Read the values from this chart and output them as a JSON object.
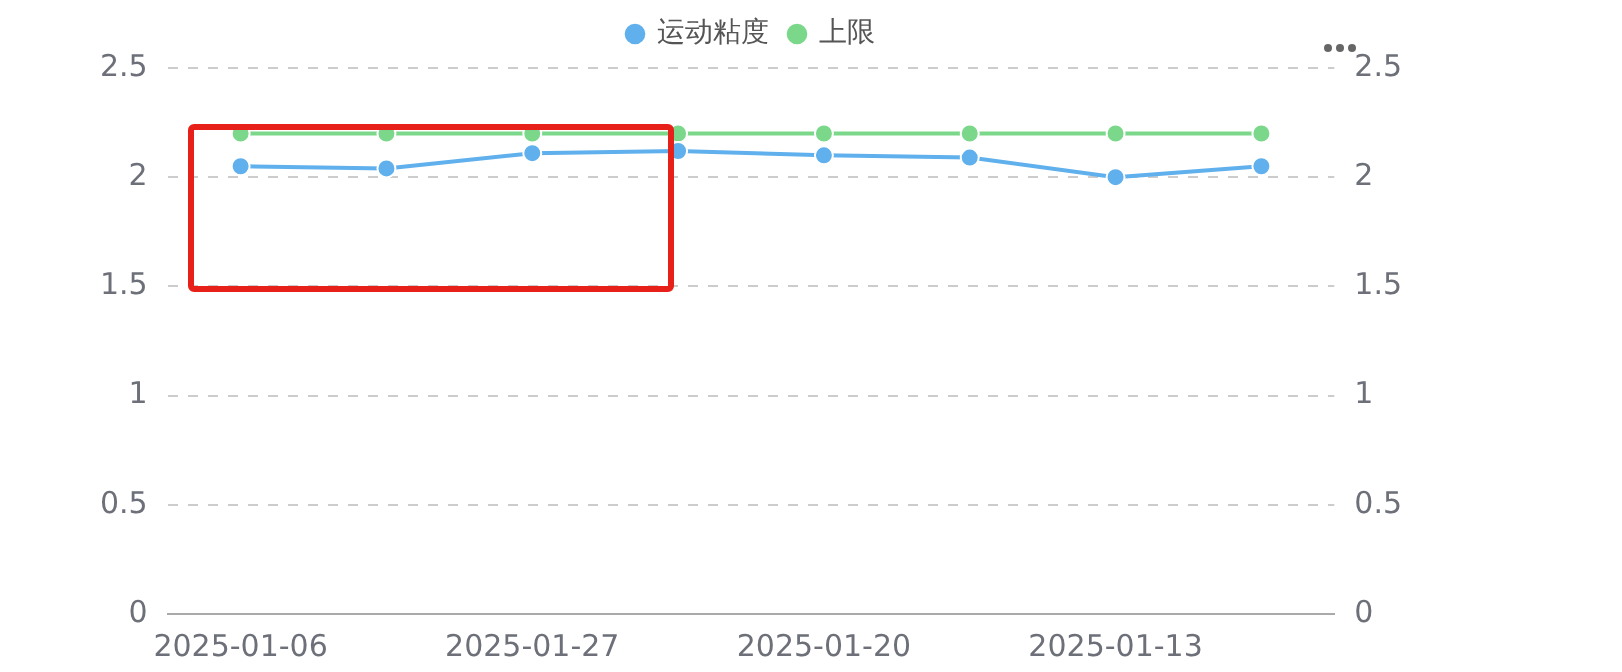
{
  "chart_data": {
    "type": "line",
    "categories": [
      "2025-01-06",
      null,
      "2025-01-27",
      null,
      "2025-01-20",
      null,
      "2025-01-13",
      null
    ],
    "series": [
      {
        "name": "运动粘度",
        "color": "#5fb0ec",
        "values": [
          2.05,
          2.04,
          2.11,
          2.12,
          2.1,
          2.09,
          2.0,
          2.05
        ]
      },
      {
        "name": "上限",
        "color": "#7bd88a",
        "values": [
          2.2,
          2.2,
          2.2,
          2.2,
          2.2,
          2.2,
          2.2,
          2.2
        ]
      }
    ],
    "ylim": [
      0,
      2.5
    ],
    "yticks": [
      0,
      0.5,
      1,
      1.5,
      2,
      2.5
    ],
    "y2lim": [
      0,
      2.5
    ],
    "y2ticks": [
      0,
      0.5,
      1,
      1.5,
      2,
      2.5
    ],
    "grid": "y",
    "legend": "top",
    "marker": "circle",
    "line_style": "solid"
  }
}
